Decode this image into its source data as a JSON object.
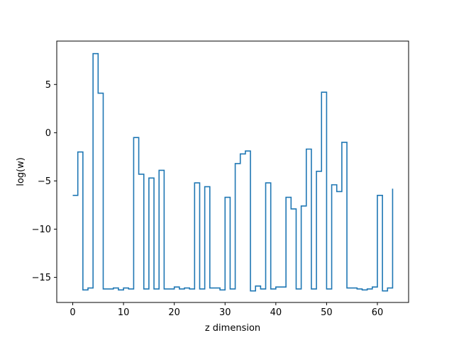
{
  "chart_data": {
    "type": "line",
    "drawstyle": "steps-post",
    "title": "",
    "xlabel": "z dimension",
    "ylabel": "log(w)",
    "xlim": [
      -3.15,
      66.15
    ],
    "ylim": [
      -17.6,
      9.5
    ],
    "xticks": [
      0,
      10,
      20,
      30,
      40,
      50,
      60
    ],
    "yticks": [
      -15,
      -10,
      -5,
      0,
      5
    ],
    "grid": false,
    "legend": "none",
    "series_color": "#1f77b4",
    "series": [
      {
        "x": [
          0,
          1,
          2,
          3,
          4,
          5,
          6,
          7,
          8,
          9,
          10,
          11,
          12,
          13,
          14,
          15,
          16,
          17,
          18,
          19,
          20,
          21,
          22,
          23,
          24,
          25,
          26,
          27,
          28,
          29,
          30,
          31,
          32,
          33,
          34,
          35,
          36,
          37,
          38,
          39,
          40,
          41,
          42,
          43,
          44,
          45,
          46,
          47,
          48,
          49,
          50,
          51,
          52,
          53,
          54,
          55,
          56,
          57,
          58,
          59,
          60,
          61,
          62,
          63
        ],
        "values": [
          -6.5,
          -2.0,
          -16.3,
          -16.1,
          8.2,
          4.1,
          -16.2,
          -16.2,
          -16.1,
          -16.3,
          -16.1,
          -16.2,
          -0.5,
          -4.3,
          -16.2,
          -4.7,
          -16.2,
          -3.9,
          -16.2,
          -16.2,
          -16.0,
          -16.2,
          -16.1,
          -16.2,
          -5.2,
          -16.2,
          -5.6,
          -16.1,
          -16.1,
          -16.3,
          -6.7,
          -16.2,
          -3.2,
          -2.2,
          -1.9,
          -16.4,
          -15.9,
          -16.2,
          -5.2,
          -16.2,
          -16.0,
          -16.0,
          -6.7,
          -7.9,
          -16.2,
          -7.6,
          -1.7,
          -16.2,
          -4.0,
          4.2,
          -16.2,
          -5.4,
          -6.1,
          -1.0,
          -16.1,
          -16.1,
          -16.2,
          -16.3,
          -16.2,
          -16.0,
          -6.5,
          -16.4,
          -16.1,
          -5.8
        ]
      }
    ]
  }
}
